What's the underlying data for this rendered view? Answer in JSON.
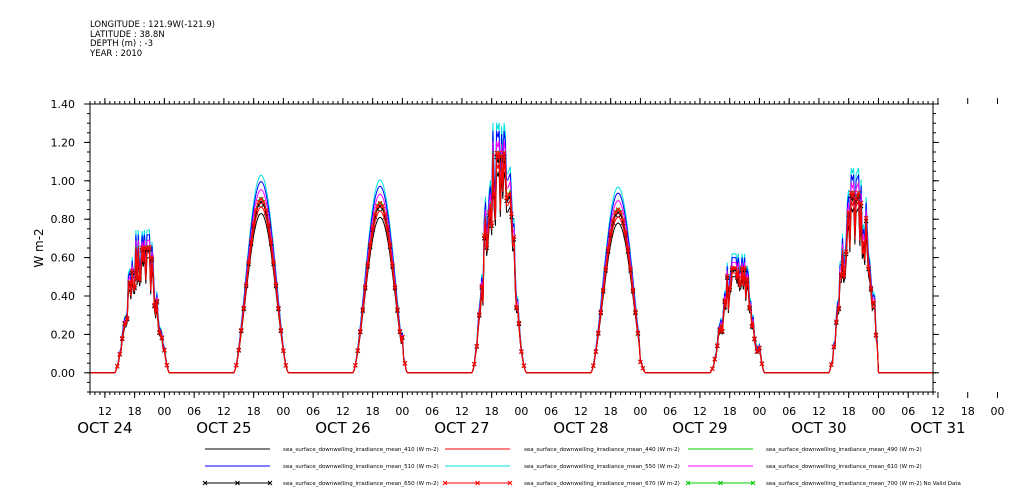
{
  "header": {
    "longitude": "LONGITUDE : 121.9W(-121.9)",
    "latitude": "LATITUDE : 38.8N",
    "depth": "DEPTH (m) : -3",
    "year": "YEAR : 2010"
  },
  "chart_data": {
    "type": "line",
    "title": "",
    "xlabel": "",
    "ylabel": "W m-2",
    "ylim": [
      -0.1,
      1.4
    ],
    "yticks": [
      "0.00",
      "0.20",
      "0.40",
      "0.60",
      "0.80",
      "1.00",
      "1.20",
      "1.40"
    ],
    "xlim": [
      "2010-10-24T09:00",
      "2010-10-31T11:00"
    ],
    "x_hour_ticks": [
      "12",
      "18",
      "00",
      "06",
      "12",
      "18",
      "00",
      "06",
      "12",
      "18",
      "00",
      "06",
      "12",
      "18",
      "00",
      "06",
      "12",
      "18",
      "00",
      "06",
      "12",
      "18",
      "00",
      "06",
      "12",
      "18",
      "00",
      "06",
      "12",
      "18",
      "00",
      "06"
    ],
    "x_day_labels": [
      "OCT 24",
      "OCT 25",
      "OCT 26",
      "OCT 27",
      "OCT 28",
      "OCT 29",
      "OCT 30",
      "OCT 31"
    ],
    "grid": false,
    "legend_position": "bottom",
    "day_peaks_410": [
      {
        "date": "2010-10-24",
        "peak": 0.6
      },
      {
        "date": "2010-10-25",
        "peak": 0.83
      },
      {
        "date": "2010-10-26",
        "peak": 0.81
      },
      {
        "date": "2010-10-27",
        "peak": 1.05
      },
      {
        "date": "2010-10-28",
        "peak": 0.78
      },
      {
        "date": "2010-10-29",
        "peak": 0.5
      },
      {
        "date": "2010-10-30",
        "peak": 0.86
      }
    ],
    "series": [
      {
        "name": "sea_surface_downwelling_irradiance_mean_410 (W m-2)",
        "color": "#000000",
        "scale": 1.0,
        "marker": "none"
      },
      {
        "name": "sea_surface_downwelling_irradiance_mean_440 (W m-2)",
        "color": "#ff0000",
        "scale": 1.04,
        "marker": "none"
      },
      {
        "name": "sea_surface_downwelling_irradiance_mean_490 (W m-2)",
        "color": "#00cc00",
        "scale": 1.1,
        "marker": "none"
      },
      {
        "name": "sea_surface_downwelling_irradiance_mean_510 (W m-2)",
        "color": "#0000ff",
        "scale": 1.2,
        "marker": "none"
      },
      {
        "name": "sea_surface_downwelling_irradiance_mean_550 (W m-2)",
        "color": "#00e0e0",
        "scale": 1.24,
        "marker": "none"
      },
      {
        "name": "sea_surface_downwelling_irradiance_mean_610 (W m-2)",
        "color": "#ff00ff",
        "scale": 1.15,
        "marker": "none"
      },
      {
        "name": "sea_surface_downwelling_irradiance_mean_650 (W m-2)",
        "color": "#000000",
        "scale": 1.07,
        "marker": "x"
      },
      {
        "name": "sea_surface_downwelling_irradiance_mean_670 (W m-2)",
        "color": "#ff0000",
        "scale": 1.09,
        "marker": "x"
      },
      {
        "name": "sea_surface_downwelling_irradiance_mean_700 (W m-2) No Valid Data",
        "color": "#00cc00",
        "scale": 0,
        "marker": "x"
      }
    ]
  }
}
